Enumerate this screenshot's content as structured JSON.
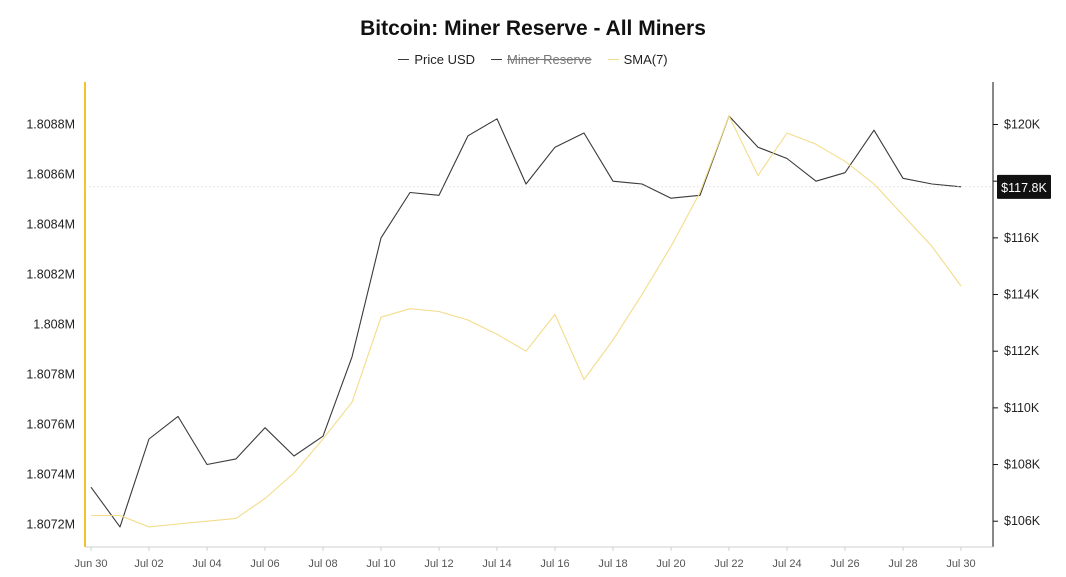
{
  "chart_data": {
    "type": "line",
    "title": "Bitcoin: Miner Reserve - All Miners",
    "legend": {
      "placement": "top-center",
      "items": [
        {
          "label": "Price USD",
          "color": "#3a3a3a",
          "hidden": false
        },
        {
          "label": "Miner Reserve",
          "color": "#3a3a3a",
          "hidden": true
        },
        {
          "label": "SMA(7)",
          "color": "#f3dc8a",
          "hidden": false
        }
      ]
    },
    "x_dates": [
      "Jun 30",
      "Jul 01",
      "Jul 02",
      "Jul 03",
      "Jul 04",
      "Jul 05",
      "Jul 06",
      "Jul 07",
      "Jul 08",
      "Jul 09",
      "Jul 10",
      "Jul 11",
      "Jul 12",
      "Jul 13",
      "Jul 14",
      "Jul 15",
      "Jul 16",
      "Jul 17",
      "Jul 18",
      "Jul 19",
      "Jul 20",
      "Jul 21",
      "Jul 22",
      "Jul 23",
      "Jul 24",
      "Jul 25",
      "Jul 26",
      "Jul 27",
      "Jul 28",
      "Jul 29",
      "Jul 30"
    ],
    "x_tick_labels": [
      "Jun 30",
      "Jul 02",
      "Jul 04",
      "Jul 06",
      "Jul 08",
      "Jul 10",
      "Jul 12",
      "Jul 14",
      "Jul 16",
      "Jul 18",
      "Jul 20",
      "Jul 22",
      "Jul 24",
      "Jul 26",
      "Jul 28",
      "Jul 30"
    ],
    "y_left": {
      "ticks": [
        "1.8088M",
        "1.8086M",
        "1.8084M",
        "1.8082M",
        "1.808M",
        "1.8078M",
        "1.8076M",
        "1.8074M",
        "1.8072M"
      ],
      "tick_values": [
        1.8088,
        1.8086,
        1.8084,
        1.8082,
        1.808,
        1.8078,
        1.8076,
        1.8074,
        1.8072
      ],
      "range": [
        1.80711,
        1.80897
      ]
    },
    "y_right": {
      "ticks": [
        "$120K",
        "$118K",
        "$116K",
        "$114K",
        "$112K",
        "$110K",
        "$108K",
        "$106K"
      ],
      "tick_values": [
        120000,
        118000,
        116000,
        114000,
        112000,
        110000,
        108000,
        106000
      ],
      "range": [
        105090,
        121500
      ],
      "current_price_label": "$117.8K",
      "current_price_value": 117800
    },
    "series": [
      {
        "name": "Price USD",
        "axis": "right",
        "color": "#3a3a3a",
        "values": [
          107200,
          105800,
          108900,
          109700,
          108000,
          108200,
          109300,
          108300,
          109000,
          111800,
          116000,
          117600,
          117500,
          119600,
          120200,
          117900,
          119200,
          119700,
          118000,
          117900,
          117400,
          117500,
          120300,
          119200,
          118800,
          118000,
          118300,
          119800,
          118100,
          117900,
          117800
        ]
      },
      {
        "name": "SMA(7)",
        "axis": "right",
        "color": "#f3dc8a",
        "values": [
          106200,
          106200,
          105800,
          105900,
          106000,
          106100,
          106800,
          107700,
          108900,
          110200,
          113200,
          113500,
          113400,
          113100,
          112600,
          112000,
          113300,
          111000,
          112400,
          114000,
          115700,
          117600,
          120300,
          118200,
          119700,
          119300,
          118700,
          117900,
          116800,
          115700,
          114300
        ]
      }
    ]
  }
}
